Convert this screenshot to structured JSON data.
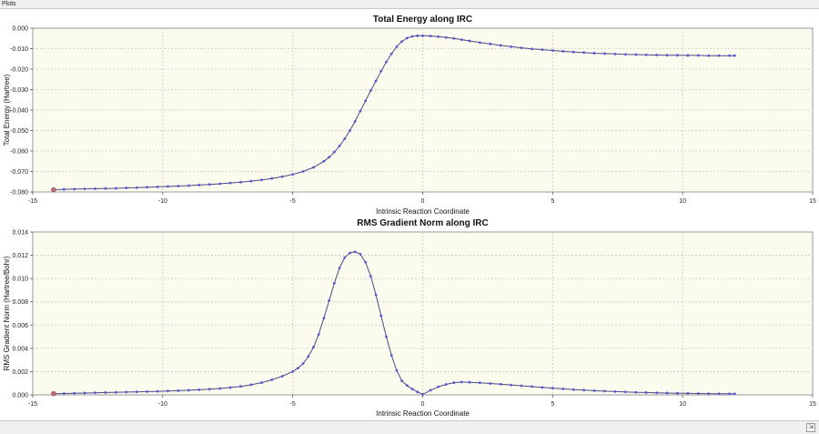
{
  "window": {
    "title": "Plots"
  },
  "icons": {
    "status": "resize-grip-icon"
  },
  "colors": {
    "plot_bg": "#fbfbee",
    "line": "#4a4a82",
    "marker": "#5656d6",
    "first_marker": "#cc6677",
    "grid": "#c8c8c8"
  },
  "chart_data": [
    {
      "type": "line",
      "title": "Total Energy along IRC",
      "xlabel": "Intrinsic Reaction Coordinate",
      "ylabel": "Total Energy (Hartree)",
      "xlim": [
        -15,
        15
      ],
      "ylim": [
        -0.08,
        0.0
      ],
      "grid": true,
      "x_ticks": [
        "-15",
        "-10",
        "-5",
        "0",
        "5",
        "10",
        "15"
      ],
      "y_ticks": [
        "0.000",
        "-0.010",
        "-0.020",
        "-0.030",
        "-0.040",
        "-0.050",
        "-0.060",
        "-0.070",
        "-0.080"
      ],
      "x": [
        -14.2,
        -13.8,
        -13.4,
        -13.0,
        -12.6,
        -12.2,
        -11.8,
        -11.4,
        -11.0,
        -10.6,
        -10.2,
        -9.8,
        -9.4,
        -9.0,
        -8.6,
        -8.2,
        -7.8,
        -7.4,
        -7.0,
        -6.6,
        -6.2,
        -5.8,
        -5.4,
        -5.0,
        -4.6,
        -4.2,
        -3.8,
        -3.6,
        -3.4,
        -3.2,
        -3.0,
        -2.8,
        -2.6,
        -2.4,
        -2.2,
        -2.0,
        -1.8,
        -1.6,
        -1.4,
        -1.2,
        -1.0,
        -0.8,
        -0.6,
        -0.4,
        -0.2,
        0.0,
        0.3,
        0.6,
        0.9,
        1.2,
        1.5,
        1.8,
        2.2,
        2.6,
        3.0,
        3.4,
        3.8,
        4.2,
        4.6,
        5.0,
        5.4,
        5.8,
        6.2,
        6.6,
        7.0,
        7.4,
        7.8,
        8.2,
        8.6,
        9.0,
        9.4,
        9.8,
        10.2,
        10.6,
        11.0,
        11.4,
        11.8,
        12.0
      ],
      "y": [
        -0.0789,
        -0.0787,
        -0.0786,
        -0.0785,
        -0.0784,
        -0.0783,
        -0.0782,
        -0.078,
        -0.0779,
        -0.0777,
        -0.0775,
        -0.0773,
        -0.0771,
        -0.0769,
        -0.0766,
        -0.0763,
        -0.076,
        -0.0756,
        -0.0752,
        -0.0747,
        -0.0741,
        -0.0734,
        -0.0725,
        -0.0714,
        -0.07,
        -0.068,
        -0.065,
        -0.063,
        -0.0605,
        -0.0575,
        -0.054,
        -0.05,
        -0.0455,
        -0.0405,
        -0.0355,
        -0.0305,
        -0.0258,
        -0.021,
        -0.0165,
        -0.0125,
        -0.009,
        -0.0065,
        -0.0048,
        -0.004,
        -0.0037,
        -0.0037,
        -0.0038,
        -0.0041,
        -0.0045,
        -0.005,
        -0.0056,
        -0.0062,
        -0.007,
        -0.0077,
        -0.0084,
        -0.009,
        -0.0096,
        -0.0101,
        -0.0105,
        -0.0109,
        -0.0113,
        -0.0116,
        -0.0119,
        -0.0122,
        -0.0124,
        -0.0126,
        -0.0128,
        -0.0129,
        -0.013,
        -0.0131,
        -0.0132,
        -0.0132,
        -0.0133,
        -0.0133,
        -0.0134,
        -0.0134,
        -0.0134,
        -0.0134
      ]
    },
    {
      "type": "line",
      "title": "RMS Gradient Norm along IRC",
      "xlabel": "Intrinsic Reaction Coordinate",
      "ylabel": "RMS Gradient Norm (Hartree/Bohr)",
      "xlim": [
        -15,
        15
      ],
      "ylim": [
        0.0,
        0.014
      ],
      "grid": true,
      "x_ticks": [
        "-15",
        "-10",
        "-5",
        "0",
        "5",
        "10",
        "15"
      ],
      "y_ticks": [
        "0.014",
        "0.012",
        "0.010",
        "0.008",
        "0.006",
        "0.004",
        "0.002",
        "0.000"
      ],
      "x": [
        -14.2,
        -13.8,
        -13.4,
        -13.0,
        -12.6,
        -12.2,
        -11.8,
        -11.4,
        -11.0,
        -10.6,
        -10.2,
        -9.8,
        -9.4,
        -9.0,
        -8.6,
        -8.2,
        -7.8,
        -7.4,
        -7.0,
        -6.6,
        -6.2,
        -5.8,
        -5.4,
        -5.0,
        -4.8,
        -4.6,
        -4.4,
        -4.2,
        -4.0,
        -3.8,
        -3.6,
        -3.4,
        -3.2,
        -3.0,
        -2.8,
        -2.6,
        -2.4,
        -2.2,
        -2.0,
        -1.8,
        -1.6,
        -1.4,
        -1.2,
        -1.0,
        -0.8,
        -0.6,
        -0.4,
        -0.2,
        0.0,
        0.3,
        0.6,
        0.9,
        1.2,
        1.5,
        1.8,
        2.2,
        2.6,
        3.0,
        3.4,
        3.8,
        4.2,
        4.6,
        5.0,
        5.4,
        5.8,
        6.2,
        6.6,
        7.0,
        7.4,
        7.8,
        8.2,
        8.6,
        9.0,
        9.4,
        9.8,
        10.2,
        10.6,
        11.0,
        11.4,
        11.8,
        12.0
      ],
      "y": [
        0.0001,
        0.00012,
        0.00014,
        0.00016,
        0.00018,
        0.0002,
        0.00022,
        0.00024,
        0.00026,
        0.00028,
        0.0003,
        0.00033,
        0.00036,
        0.0004,
        0.00044,
        0.00049,
        0.00055,
        0.00063,
        0.00073,
        0.00087,
        0.00105,
        0.0013,
        0.0016,
        0.002,
        0.0023,
        0.0027,
        0.0033,
        0.0041,
        0.0052,
        0.0066,
        0.0081,
        0.0096,
        0.0109,
        0.0118,
        0.0122,
        0.0123,
        0.0121,
        0.0114,
        0.0102,
        0.0086,
        0.0068,
        0.005,
        0.0034,
        0.0021,
        0.0012,
        0.0008,
        0.0005,
        0.00025,
        5e-05,
        0.0004,
        0.0007,
        0.0009,
        0.00105,
        0.0011,
        0.00108,
        0.00104,
        0.00098,
        0.00092,
        0.00085,
        0.00078,
        0.00071,
        0.00064,
        0.00058,
        0.00052,
        0.00046,
        0.00041,
        0.00036,
        0.00032,
        0.00028,
        0.00025,
        0.00022,
        0.0002,
        0.00018,
        0.00016,
        0.00014,
        0.00013,
        0.00012,
        0.00011,
        0.0001,
        0.0001,
        0.0001
      ]
    }
  ]
}
